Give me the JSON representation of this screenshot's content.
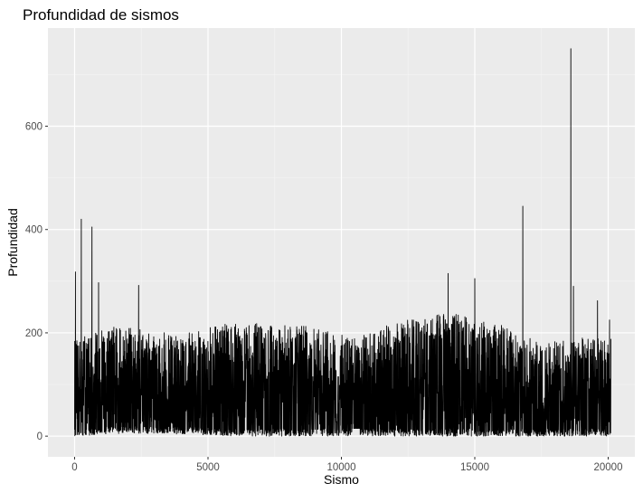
{
  "chart_data": {
    "type": "line",
    "title": "Profundidad de sismos",
    "xlabel": "Sismo",
    "ylabel": "Profundidad",
    "xlim": [
      -1000,
      21000
    ],
    "ylim": [
      -40,
      790
    ],
    "x_ticks": [
      0,
      5000,
      10000,
      15000,
      20000
    ],
    "x_tick_labels": [
      "0",
      "5000",
      "10000",
      "15000",
      "20000"
    ],
    "y_ticks": [
      0,
      200,
      400,
      600
    ],
    "y_tick_labels": [
      "0",
      "200",
      "400",
      "600"
    ],
    "grid": true,
    "legend": "none",
    "n_points": 20100,
    "series": [
      {
        "color": "#000000",
        "spikes": [
          {
            "x": 30,
            "y": 318
          },
          {
            "x": 250,
            "y": 420
          },
          {
            "x": 650,
            "y": 405
          },
          {
            "x": 900,
            "y": 297
          },
          {
            "x": 2400,
            "y": 292
          },
          {
            "x": 14000,
            "y": 315
          },
          {
            "x": 15000,
            "y": 305
          },
          {
            "x": 16800,
            "y": 445
          },
          {
            "x": 18600,
            "y": 750
          },
          {
            "x": 18700,
            "y": 290
          },
          {
            "x": 19600,
            "y": 262
          },
          {
            "x": 20050,
            "y": 225
          }
        ],
        "typical_band": [
          {
            "x": 0,
            "low": 0,
            "high": 185
          },
          {
            "x": 1500,
            "low": 5,
            "high": 215
          },
          {
            "x": 3500,
            "low": 5,
            "high": 200
          },
          {
            "x": 6000,
            "low": 0,
            "high": 220
          },
          {
            "x": 8500,
            "low": 0,
            "high": 215
          },
          {
            "x": 10500,
            "low": 0,
            "high": 190
          },
          {
            "x": 12000,
            "low": 0,
            "high": 220
          },
          {
            "x": 14000,
            "low": 0,
            "high": 240
          },
          {
            "x": 16000,
            "low": 0,
            "high": 215
          },
          {
            "x": 17500,
            "low": 0,
            "high": 180
          },
          {
            "x": 19000,
            "low": 0,
            "high": 190
          },
          {
            "x": 20100,
            "low": 0,
            "high": 190
          }
        ]
      }
    ]
  }
}
